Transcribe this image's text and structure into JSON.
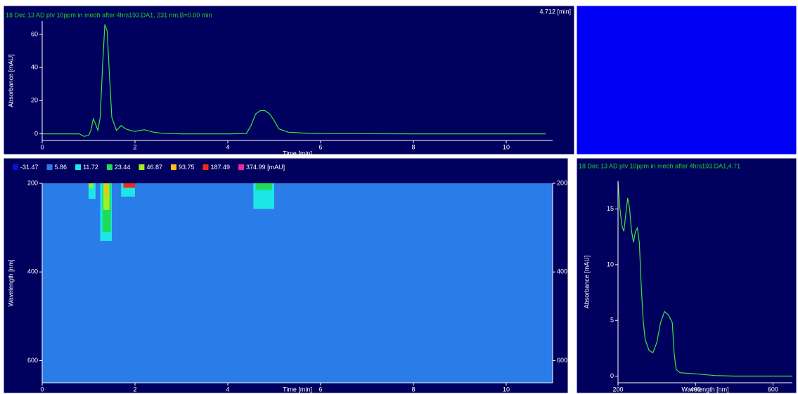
{
  "chart_data": [
    {
      "type": "line",
      "title": "18 Dec 13 AD ptv 10ppm in meoh after 4hrs193.DA1, 231 nm,B=0.00 min",
      "annotation": "4.712 [min]",
      "x_label": "Time [min]",
      "y_label": "Absorbance [mAU]",
      "color": "#3ce63c",
      "x": [
        0,
        0.8,
        0.9,
        1.0,
        1.05,
        1.1,
        1.15,
        1.2,
        1.25,
        1.3,
        1.35,
        1.4,
        1.45,
        1.5,
        1.6,
        1.7,
        1.8,
        1.9,
        2.0,
        2.2,
        2.4,
        2.6,
        3.0,
        4.0,
        4.4,
        4.5,
        4.6,
        4.7,
        4.8,
        4.9,
        5.0,
        5.1,
        5.3,
        5.6,
        6.0,
        8.0,
        10.85
      ],
      "values": [
        0,
        0,
        -1.5,
        -1,
        2,
        9,
        6,
        2,
        10,
        40,
        66,
        62,
        35,
        10,
        2,
        5,
        3,
        2,
        1.5,
        2.5,
        1,
        0.3,
        0,
        0,
        0.2,
        5,
        12,
        14,
        14,
        12,
        8,
        3,
        1,
        0.5,
        0.2,
        0,
        0
      ],
      "xlim": [
        0,
        11
      ],
      "xticks": [
        0,
        2,
        4,
        6,
        8,
        10
      ],
      "ylim": [
        -4,
        68
      ],
      "yticks": [
        0,
        20,
        40,
        60
      ]
    },
    {
      "type": "heatmap",
      "x_label": "Time [min]",
      "y_label": "Wavelength [nm]",
      "reverse_y": true,
      "right_ticks": true,
      "levels": [
        {
          "value": -31.47,
          "label": "-31.47",
          "color": "#0a14c8"
        },
        {
          "value": 5.86,
          "label": "5.86",
          "color": "#2a7de8"
        },
        {
          "value": 11.72,
          "label": "11.72",
          "color": "#1ee6e6"
        },
        {
          "value": 23.44,
          "label": "23.44",
          "color": "#1edc5a"
        },
        {
          "value": 46.87,
          "label": "46.87",
          "color": "#a0f020"
        },
        {
          "value": 93.75,
          "label": "93.75",
          "color": "#f5c018"
        },
        {
          "value": 187.49,
          "label": "187.49",
          "color": "#f02814"
        },
        {
          "value": 374.99,
          "label": "374.99 [mAU]",
          "color": "#f0289a"
        }
      ],
      "cells": [
        {
          "x": [
            0,
            11
          ],
          "y": [
            200,
            650
          ],
          "value": 5.86
        },
        {
          "x": [
            1.0,
            1.15
          ],
          "y": [
            200,
            235
          ],
          "value": 11.72
        },
        {
          "x": [
            1.0,
            1.1
          ],
          "y": [
            200,
            210
          ],
          "value": 46.87
        },
        {
          "x": [
            1.25,
            1.5
          ],
          "y": [
            200,
            330
          ],
          "value": 11.72
        },
        {
          "x": [
            1.3,
            1.48
          ],
          "y": [
            200,
            310
          ],
          "value": 23.44
        },
        {
          "x": [
            1.32,
            1.45
          ],
          "y": [
            200,
            260
          ],
          "value": 46.87
        },
        {
          "x": [
            1.35,
            1.42
          ],
          "y": [
            200,
            230
          ],
          "value": 93.75
        },
        {
          "x": [
            1.7,
            2.0
          ],
          "y": [
            200,
            230
          ],
          "value": 11.72
        },
        {
          "x": [
            1.75,
            2.0
          ],
          "y": [
            200,
            210
          ],
          "value": 187.49
        },
        {
          "x": [
            4.55,
            5.0
          ],
          "y": [
            200,
            258
          ],
          "value": 11.72
        },
        {
          "x": [
            4.6,
            4.95
          ],
          "y": [
            200,
            215
          ],
          "value": 23.44
        }
      ],
      "xlim": [
        0,
        11
      ],
      "xticks": [
        0,
        2,
        4,
        6,
        8,
        10
      ],
      "ylim": [
        200,
        650
      ],
      "yticks": [
        200,
        400,
        600
      ]
    },
    {
      "type": "line",
      "title": "18 Dec 13 AD ptv 10ppm in meoh after 4hrs193.DA1,4.71",
      "x_label": "Wavelength [nm]",
      "y_label": "Absorbance [mAU]",
      "color": "#3ce63c",
      "x": [
        200,
        205,
        210,
        215,
        220,
        225,
        230,
        235,
        240,
        245,
        250,
        255,
        260,
        265,
        270,
        280,
        290,
        300,
        310,
        320,
        330,
        340,
        345,
        350,
        360,
        400,
        450,
        500,
        550,
        600,
        650
      ],
      "values": [
        17.5,
        15,
        13.5,
        13,
        14.5,
        16,
        15,
        13,
        12,
        13,
        13.3,
        12,
        8,
        5,
        3.3,
        2.3,
        2.1,
        3,
        4.8,
        5.8,
        5.5,
        4.8,
        2,
        0.6,
        0.3,
        0.2,
        0.05,
        0,
        0,
        0,
        0
      ],
      "xlim": [
        200,
        650
      ],
      "xticks": [
        200,
        400,
        600
      ],
      "ylim": [
        -0.6,
        17.5
      ],
      "yticks": [
        0,
        5,
        10,
        15
      ]
    }
  ]
}
